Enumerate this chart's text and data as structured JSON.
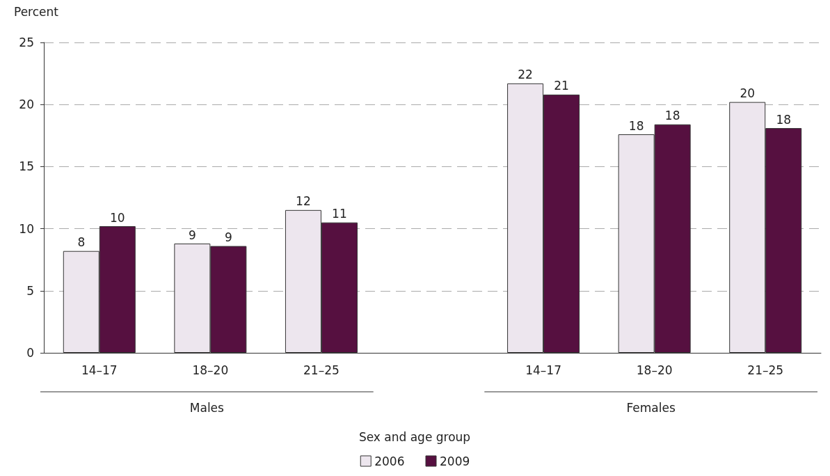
{
  "chart_data": {
    "type": "bar",
    "ylabel": "Percent",
    "xlabel": "Sex and age group",
    "categories": [
      "14–17",
      "18–20",
      "21–25",
      null,
      "14–17",
      "18–20",
      "21–25"
    ],
    "series": [
      {
        "name": "2006",
        "color": "#ede6ee",
        "values": [
          8.2,
          8.8,
          11.5,
          null,
          21.7,
          17.6,
          20.2
        ],
        "value_labels": [
          "8",
          "9",
          "12",
          null,
          "22",
          "18",
          "20"
        ]
      },
      {
        "name": "2009",
        "color": "#561040",
        "values": [
          10.2,
          8.6,
          10.5,
          null,
          20.8,
          18.4,
          18.1
        ],
        "value_labels": [
          "10",
          "9",
          "11",
          null,
          "21",
          "18",
          "18"
        ]
      }
    ],
    "ylim": [
      0,
      25
    ],
    "yticks": [
      0,
      5,
      10,
      15,
      20,
      25
    ],
    "grid": "y",
    "legend": "bottom",
    "annotations": [
      "Males",
      "Females"
    ]
  }
}
